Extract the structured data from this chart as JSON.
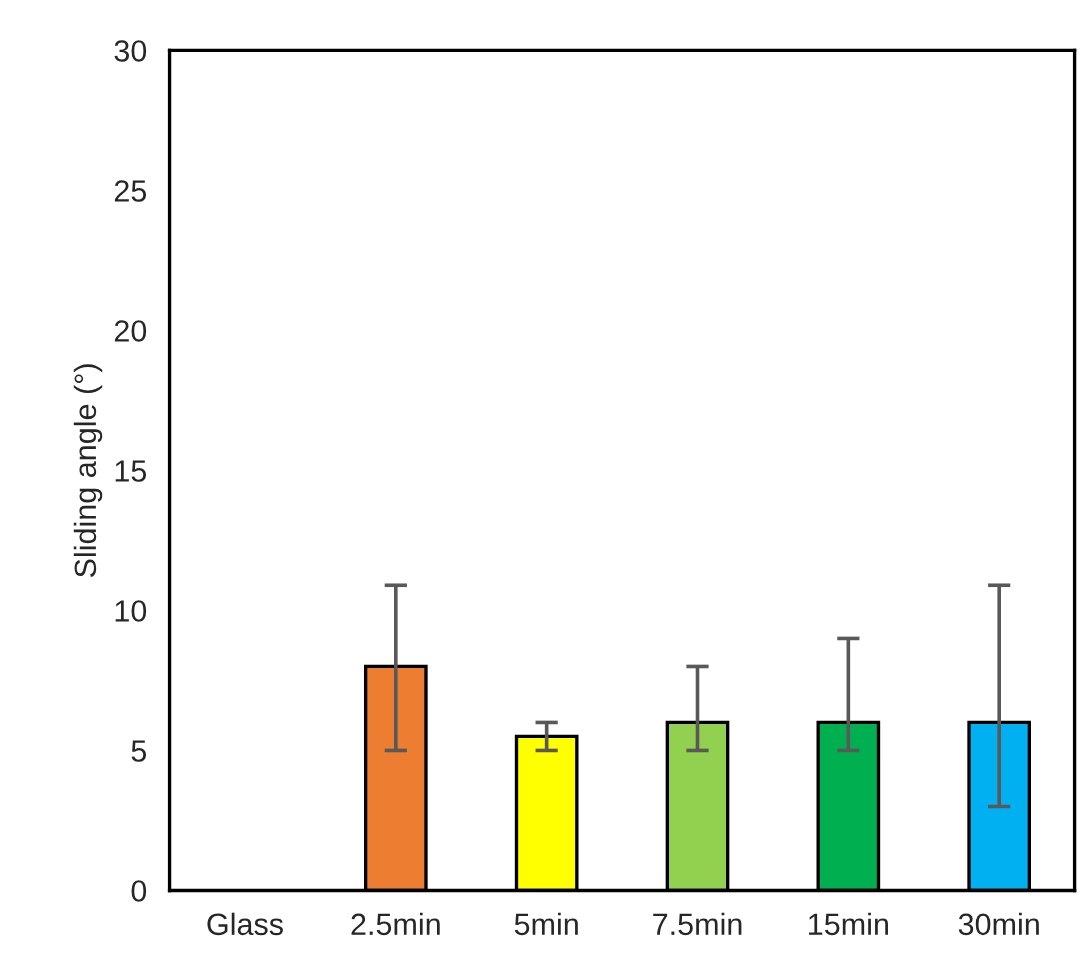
{
  "chart_data": {
    "type": "bar",
    "ylabel": "Sliding angle (°)",
    "categories": [
      "Glass",
      "2.5min",
      "5min",
      "7.5min",
      "15min",
      "30min"
    ],
    "values": [
      null,
      8,
      5.5,
      6,
      6,
      6
    ],
    "colors": [
      "#ffffff",
      "#ed7d31",
      "#ffff00",
      "#92d050",
      "#00b050",
      "#00b0f0"
    ],
    "errors": [
      null,
      [
        5,
        10.9
      ],
      [
        5,
        6
      ],
      [
        5,
        8
      ],
      [
        5,
        9
      ],
      [
        3,
        10.9
      ]
    ],
    "ylim": [
      0,
      30
    ],
    "yticks": [
      0,
      5,
      10,
      15,
      20,
      25,
      30
    ],
    "grid": false,
    "legend": false
  }
}
